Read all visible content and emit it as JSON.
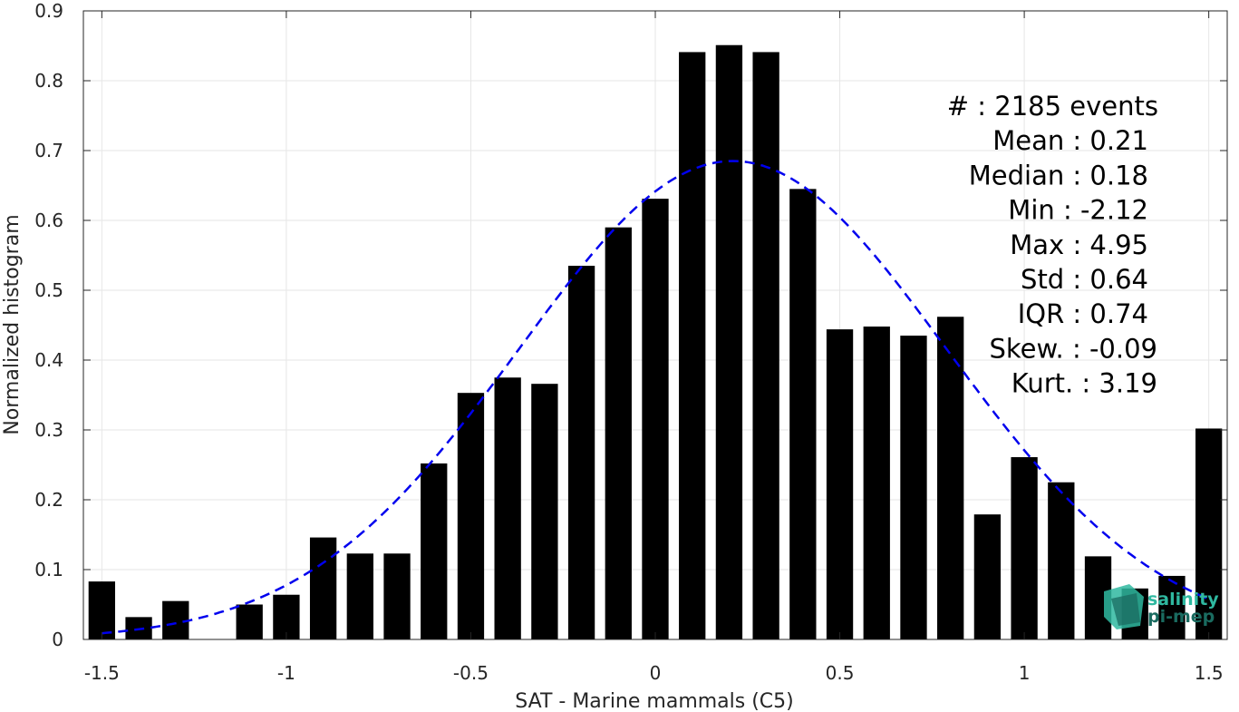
{
  "chart_data": {
    "type": "bar",
    "xlabel": "SAT - Marine mammals (C5)",
    "ylabel": "Normalized histogram",
    "xlim": [
      -1.55,
      1.55
    ],
    "ylim": [
      0,
      0.9
    ],
    "x_ticks": [
      -1.5,
      -1,
      -0.5,
      0,
      0.5,
      1,
      1.5
    ],
    "x_tick_labels": [
      "-1.5",
      "-1",
      "-0.5",
      "0",
      "0.5",
      "1",
      "1.5"
    ],
    "y_ticks": [
      0,
      0.1,
      0.2,
      0.3,
      0.4,
      0.5,
      0.6,
      0.7,
      0.8,
      0.9
    ],
    "y_tick_labels": [
      "0",
      "0.1",
      "0.2",
      "0.3",
      "0.4",
      "0.5",
      "0.6",
      "0.7",
      "0.8",
      "0.9"
    ],
    "grid": true,
    "bar_color": "#000000",
    "bins": [
      {
        "x": -1.5,
        "value": 0.083
      },
      {
        "x": -1.4,
        "value": 0.032
      },
      {
        "x": -1.3,
        "value": 0.055
      },
      {
        "x": -1.2,
        "value": 0.0
      },
      {
        "x": -1.1,
        "value": 0.05
      },
      {
        "x": -1.0,
        "value": 0.064
      },
      {
        "x": -0.9,
        "value": 0.146
      },
      {
        "x": -0.8,
        "value": 0.123
      },
      {
        "x": -0.7,
        "value": 0.123
      },
      {
        "x": -0.6,
        "value": 0.252
      },
      {
        "x": -0.5,
        "value": 0.353
      },
      {
        "x": -0.4,
        "value": 0.375
      },
      {
        "x": -0.3,
        "value": 0.366
      },
      {
        "x": -0.2,
        "value": 0.535
      },
      {
        "x": -0.1,
        "value": 0.59
      },
      {
        "x": 0.0,
        "value": 0.631
      },
      {
        "x": 0.1,
        "value": 0.841
      },
      {
        "x": 0.2,
        "value": 0.851
      },
      {
        "x": 0.3,
        "value": 0.841
      },
      {
        "x": 0.4,
        "value": 0.645
      },
      {
        "x": 0.5,
        "value": 0.444
      },
      {
        "x": 0.6,
        "value": 0.448
      },
      {
        "x": 0.7,
        "value": 0.435
      },
      {
        "x": 0.8,
        "value": 0.462
      },
      {
        "x": 0.9,
        "value": 0.179
      },
      {
        "x": 1.0,
        "value": 0.261
      },
      {
        "x": 1.1,
        "value": 0.225
      },
      {
        "x": 1.2,
        "value": 0.119
      },
      {
        "x": 1.3,
        "value": 0.073
      },
      {
        "x": 1.4,
        "value": 0.091
      },
      {
        "x": 1.5,
        "value": 0.302
      }
    ],
    "fit_curve": {
      "style": "dashed",
      "color": "#0000ee",
      "mean": 0.21,
      "std": 0.58,
      "peak": 0.685,
      "x_range": [
        -1.5,
        1.5
      ]
    },
    "stats": [
      {
        "label": "#  : 2185 events"
      },
      {
        "label": "Mean : 0.21"
      },
      {
        "label": "Median : 0.18"
      },
      {
        "label": "Min : -2.12"
      },
      {
        "label": "Max : 4.95"
      },
      {
        "label": "Std : 0.64"
      },
      {
        "label": "IQR : 0.74"
      },
      {
        "label": "Skew. : -0.09"
      },
      {
        "label": "Kurt. : 3.19"
      }
    ]
  },
  "logo": {
    "line1": "salinity",
    "line2": "pi-mep",
    "color_light": "#2fb8a0",
    "color_dark": "#1a6b60"
  }
}
